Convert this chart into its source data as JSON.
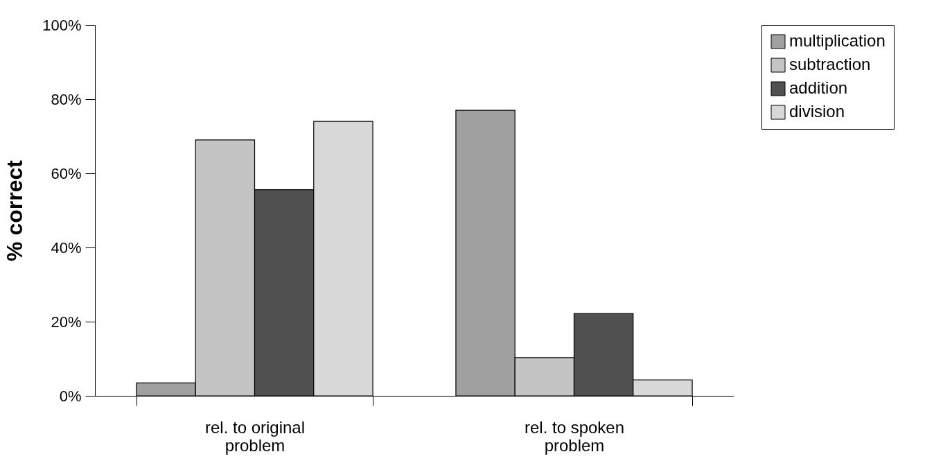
{
  "chart_data": {
    "type": "bar",
    "ylabel": "% correct",
    "categories": [
      "rel. to original problem",
      "rel. to spoken problem"
    ],
    "series": [
      {
        "name": "multiplication",
        "color": "#a0a0a0",
        "values": [
          3.5,
          77
        ]
      },
      {
        "name": "subtraction",
        "color": "#c4c4c4",
        "values": [
          69,
          10.3
        ]
      },
      {
        "name": "addition",
        "color": "#505050",
        "values": [
          55.6,
          22.2
        ]
      },
      {
        "name": "division",
        "color": "#d8d8d8",
        "values": [
          74,
          4.3
        ]
      }
    ],
    "ylim": [
      0,
      100
    ],
    "yticks": [
      {
        "value": 0,
        "label": "0%"
      },
      {
        "value": 20,
        "label": "20%"
      },
      {
        "value": 40,
        "label": "40%"
      },
      {
        "value": 60,
        "label": "60%"
      },
      {
        "value": 80,
        "label": "80%"
      },
      {
        "value": 100,
        "label": "100%"
      }
    ],
    "grid": false,
    "legend": "right"
  }
}
